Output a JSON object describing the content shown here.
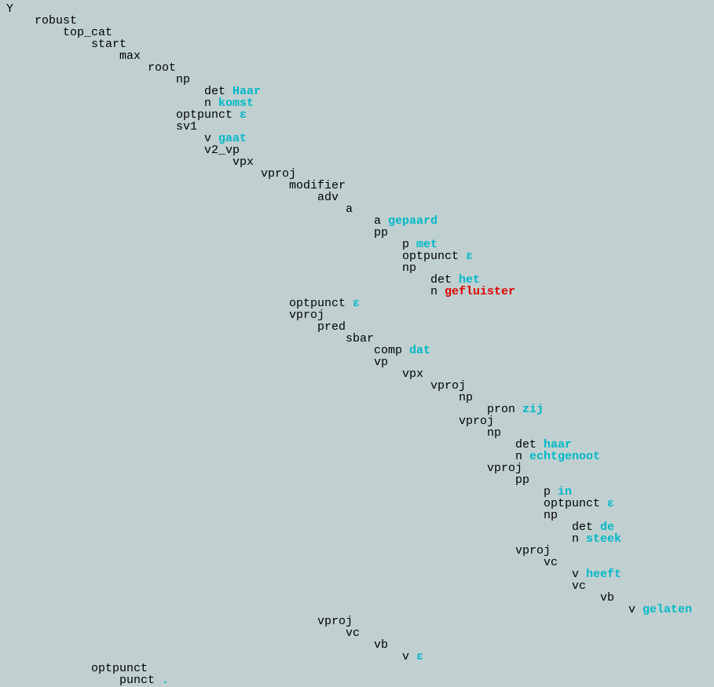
{
  "tree": {
    "label": "Y",
    "children": [
      {
        "label": "robust",
        "children": [
          {
            "label": "top_cat",
            "children": [
              {
                "label": "start",
                "children": [
                  {
                    "label": "max",
                    "children": [
                      {
                        "label": "root",
                        "children": [
                          {
                            "label": "np",
                            "children": [
                              {
                                "label": "det",
                                "word": "Haar"
                              },
                              {
                                "label": "n",
                                "word": "komst"
                              }
                            ]
                          },
                          {
                            "label": "optpunct",
                            "word": "ε"
                          },
                          {
                            "label": "sv1",
                            "children": [
                              {
                                "label": "v",
                                "word": "gaat"
                              },
                              {
                                "label": "v2_vp",
                                "children": [
                                  {
                                    "label": "vpx",
                                    "children": [
                                      {
                                        "label": "vproj",
                                        "children": [
                                          {
                                            "label": "modifier",
                                            "children": [
                                              {
                                                "label": "adv",
                                                "children": [
                                                  {
                                                    "label": "a",
                                                    "children": [
                                                      {
                                                        "label": "a",
                                                        "word": "gepaard"
                                                      },
                                                      {
                                                        "label": "pp",
                                                        "children": [
                                                          {
                                                            "label": "p",
                                                            "word": "met"
                                                          },
                                                          {
                                                            "label": "optpunct",
                                                            "word": "ε"
                                                          },
                                                          {
                                                            "label": "np",
                                                            "children": [
                                                              {
                                                                "label": "det",
                                                                "word": "het"
                                                              },
                                                              {
                                                                "label": "n",
                                                                "word": "gefluister",
                                                                "word_color": "#e00000"
                                                              }
                                                            ]
                                                          }
                                                        ]
                                                      }
                                                    ]
                                                  }
                                                ]
                                              }
                                            ]
                                          },
                                          {
                                            "label": "optpunct",
                                            "word": "ε"
                                          },
                                          {
                                            "label": "vproj",
                                            "children": [
                                              {
                                                "label": "pred",
                                                "children": [
                                                  {
                                                    "label": "sbar",
                                                    "children": [
                                                      {
                                                        "label": "comp",
                                                        "word": "dat"
                                                      },
                                                      {
                                                        "label": "vp",
                                                        "children": [
                                                          {
                                                            "label": "vpx",
                                                            "children": [
                                                              {
                                                                "label": "vproj",
                                                                "children": [
                                                                  {
                                                                    "label": "np",
                                                                    "children": [
                                                                      {
                                                                        "label": "pron",
                                                                        "word": "zij"
                                                                      }
                                                                    ]
                                                                  },
                                                                  {
                                                                    "label": "vproj",
                                                                    "children": [
                                                                      {
                                                                        "label": "np",
                                                                        "children": [
                                                                          {
                                                                            "label": "det",
                                                                            "word": "haar"
                                                                          },
                                                                          {
                                                                            "label": "n",
                                                                            "word": "echtgenoot"
                                                                          }
                                                                        ]
                                                                      },
                                                                      {
                                                                        "label": "vproj",
                                                                        "children": [
                                                                          {
                                                                            "label": "pp",
                                                                            "children": [
                                                                              {
                                                                                "label": "p",
                                                                                "word": "in"
                                                                              },
                                                                              {
                                                                                "label": "optpunct",
                                                                                "word": "ε"
                                                                              },
                                                                              {
                                                                                "label": "np",
                                                                                "children": [
                                                                                  {
                                                                                    "label": "det",
                                                                                    "word": "de"
                                                                                  },
                                                                                  {
                                                                                    "label": "n",
                                                                                    "word": "steek"
                                                                                  }
                                                                                ]
                                                                              }
                                                                            ]
                                                                          },
                                                                          {
                                                                            "label": "vproj",
                                                                            "children": [
                                                                              {
                                                                                "label": "vc",
                                                                                "children": [
                                                                                  {
                                                                                    "label": "v",
                                                                                    "word": "heeft"
                                                                                  },
                                                                                  {
                                                                                    "label": "vc",
                                                                                    "children": [
                                                                                      {
                                                                                        "label": "vb",
                                                                                        "children": [
                                                                                          {
                                                                                            "label": "v",
                                                                                            "word": "gelaten"
                                                                                          }
                                                                                        ]
                                                                                      }
                                                                                    ]
                                                                                  }
                                                                                ]
                                                                              }
                                                                            ]
                                                                          }
                                                                        ]
                                                                      }
                                                                    ]
                                                                  }
                                                                ]
                                                              }
                                                            ]
                                                          }
                                                        ]
                                                      }
                                                    ]
                                                  }
                                                ]
                                              },
                                              {
                                                "label": "vproj",
                                                "children": [
                                                  {
                                                    "label": "vc",
                                                    "children": [
                                                      {
                                                        "label": "vb",
                                                        "children": [
                                                          {
                                                            "label": "v",
                                                            "word": "ε"
                                                          }
                                                        ]
                                                      }
                                                    ]
                                                  }
                                                ]
                                              }
                                            ]
                                          }
                                        ]
                                      }
                                    ]
                                  }
                                ]
                              }
                            ]
                          }
                        ]
                      }
                    ]
                  }
                ]
              },
              {
                "label": "optpunct",
                "children": [
                  {
                    "label": "punct",
                    "word": "."
                  }
                ]
              }
            ]
          }
        ]
      }
    ]
  }
}
